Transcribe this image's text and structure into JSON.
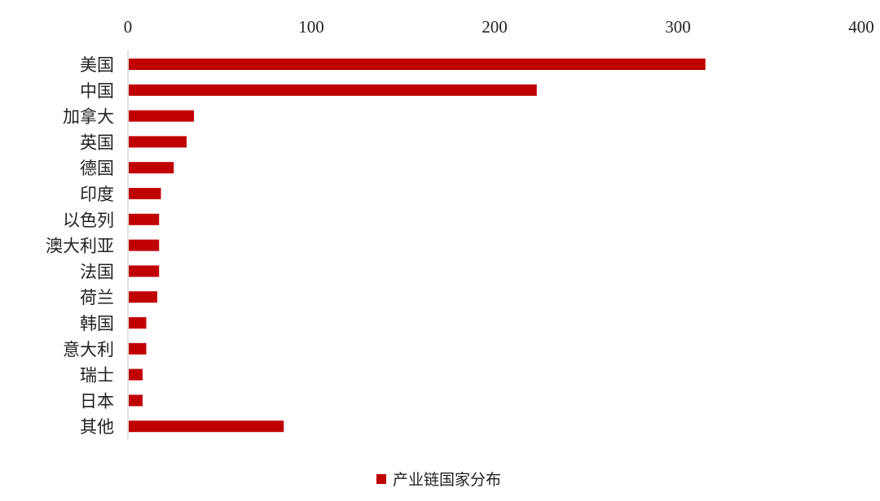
{
  "chart_data": {
    "type": "bar",
    "orientation": "horizontal",
    "categories": [
      "美国",
      "中国",
      "加拿大",
      "英国",
      "德国",
      "印度",
      "以色列",
      "澳大利亚",
      "法国",
      "荷兰",
      "韩国",
      "意大利",
      "瑞士",
      "日本",
      "其他"
    ],
    "series": [
      {
        "name": "产业链国家分布",
        "values": [
          315,
          223,
          36,
          32,
          25,
          18,
          17,
          17,
          17,
          16,
          10,
          10,
          8,
          8,
          85
        ],
        "color": "#c00000"
      }
    ],
    "xlim": [
      0,
      400
    ],
    "xticks": [
      "0",
      "100",
      "200",
      "300",
      "400"
    ],
    "x_axis_position": "top",
    "grid": false,
    "legend_position": "bottom"
  }
}
